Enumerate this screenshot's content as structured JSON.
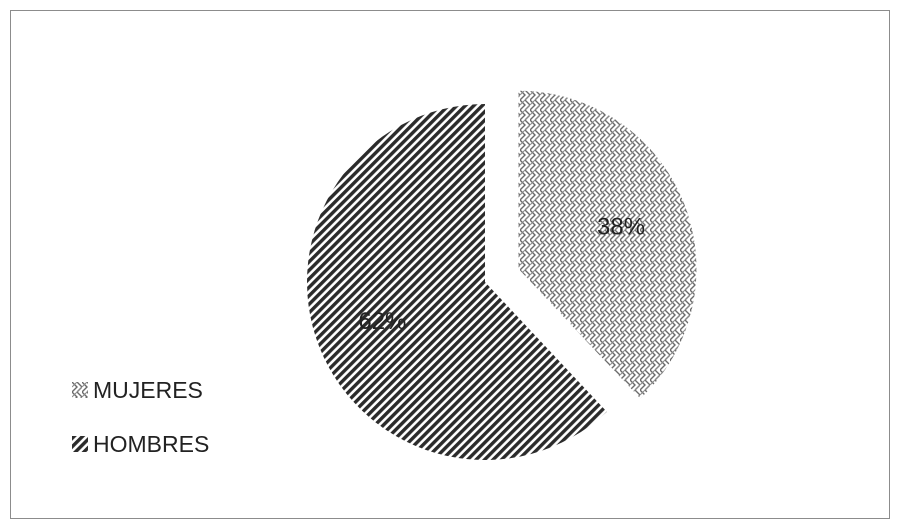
{
  "chart_data": {
    "type": "pie",
    "title": "",
    "slices": [
      {
        "name": "MUJERES",
        "value": 38,
        "label": "38%",
        "pattern": "weave",
        "color": "#6b6b6b",
        "exploded": true
      },
      {
        "name": "HOMBRES",
        "value": 62,
        "label": "62%",
        "pattern": "diagonal",
        "color": "#2b2b2b",
        "exploded": false
      }
    ],
    "legend_position": "left",
    "start_angle": "12 o'clock",
    "direction": "clockwise"
  }
}
